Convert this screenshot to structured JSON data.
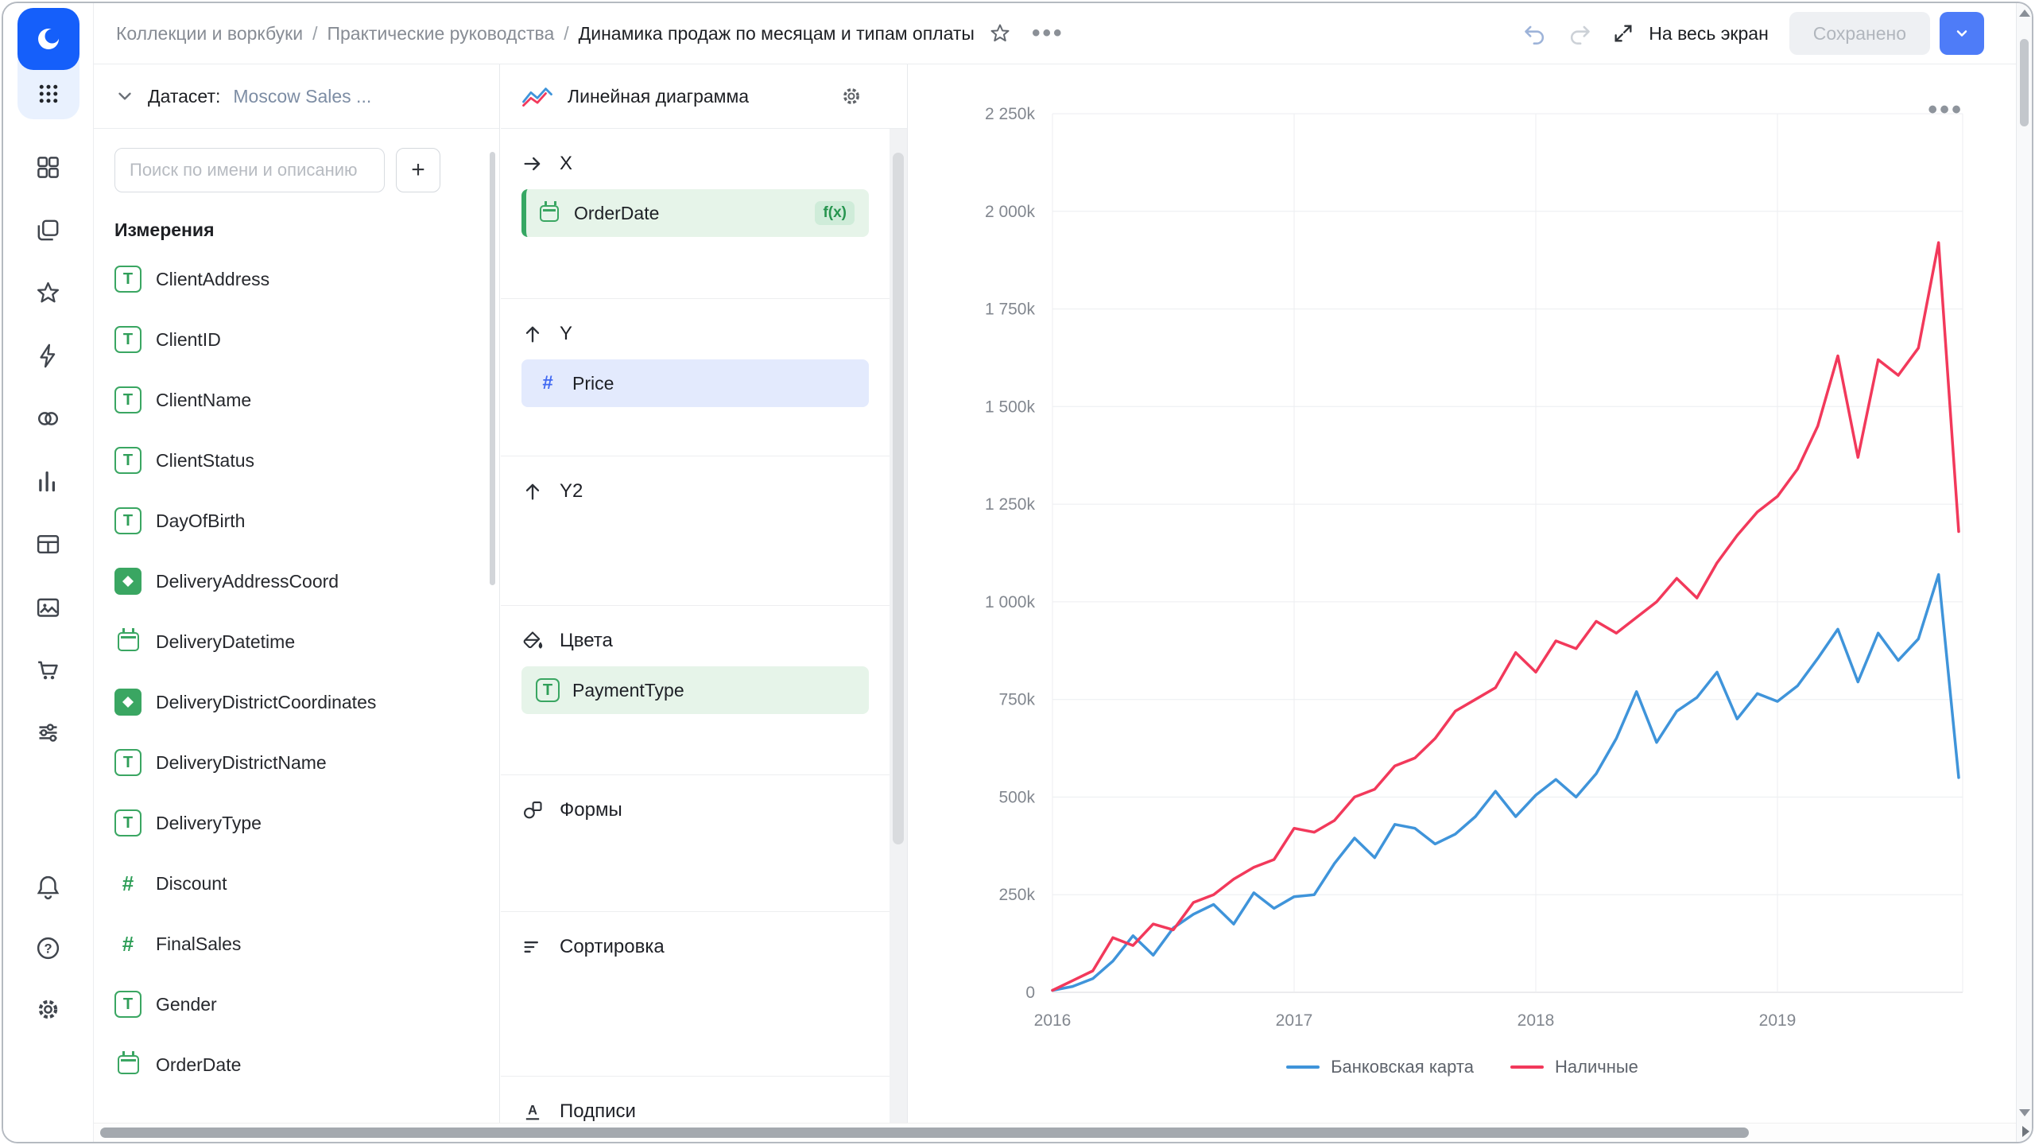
{
  "icons": {
    "more_dots": "•••",
    "plus": "+"
  },
  "rail": {
    "icons": [
      "datalens-logo",
      "apps-grid",
      "widgets",
      "collections",
      "favorites",
      "quick-actions",
      "datasets",
      "charts",
      "tables",
      "files",
      "marketplace",
      "service-settings",
      "notifications-bell",
      "help",
      "settings-gear"
    ]
  },
  "topbar": {
    "breadcrumb": [
      "Коллекции и воркбуки",
      "Практические руководства",
      "Динамика продаж по месяцам и типам оплаты"
    ],
    "fullscreen_label": "На весь экран",
    "saved_label": "Сохранено"
  },
  "dataset_panel": {
    "label": "Датасет:",
    "name": "Moscow Sales ...",
    "search_placeholder": "Поиск по имени и описанию",
    "dimensions_title": "Измерения",
    "fields": [
      {
        "name": "ClientAddress",
        "type": "text"
      },
      {
        "name": "ClientID",
        "type": "text"
      },
      {
        "name": "ClientName",
        "type": "text"
      },
      {
        "name": "ClientStatus",
        "type": "text"
      },
      {
        "name": "DayOfBirth",
        "type": "text"
      },
      {
        "name": "DeliveryAddressCoord",
        "type": "geo"
      },
      {
        "name": "DeliveryDatetime",
        "type": "date"
      },
      {
        "name": "DeliveryDistrictCoordinates",
        "type": "geo"
      },
      {
        "name": "DeliveryDistrictName",
        "type": "text"
      },
      {
        "name": "DeliveryType",
        "type": "text"
      },
      {
        "name": "Discount",
        "type": "number"
      },
      {
        "name": "FinalSales",
        "type": "number"
      },
      {
        "name": "Gender",
        "type": "text"
      },
      {
        "name": "OrderDate",
        "type": "date"
      }
    ]
  },
  "config_panel": {
    "title": "Линейная диаграмма",
    "sections": [
      {
        "id": "x",
        "label": "X",
        "icon": "arrow-right",
        "fields": [
          {
            "name": "OrderDate",
            "type": "date",
            "tone": "green",
            "accent": true,
            "badge": "f(x)"
          }
        ]
      },
      {
        "id": "y",
        "label": "Y",
        "icon": "arrow-up",
        "fields": [
          {
            "name": "Price",
            "type": "number",
            "tone": "blue"
          }
        ]
      },
      {
        "id": "y2",
        "label": "Y2",
        "icon": "arrow-up",
        "fields": []
      },
      {
        "id": "colors",
        "label": "Цвета",
        "icon": "paint",
        "fields": [
          {
            "name": "PaymentType",
            "type": "text",
            "tone": "green"
          }
        ]
      },
      {
        "id": "shapes",
        "label": "Формы",
        "icon": "shapes",
        "fields": []
      },
      {
        "id": "sort",
        "label": "Сортировка",
        "icon": "sort",
        "fields": []
      },
      {
        "id": "labels",
        "label": "Подписи",
        "icon": "labels",
        "fields": []
      }
    ]
  },
  "chart_data": {
    "type": "line",
    "title": "",
    "x_unit": "month",
    "x_start": "2016-01",
    "x_months": 46,
    "year_labels": [
      "2016",
      "2017",
      "2018",
      "2019"
    ],
    "values_unit": "thousands",
    "y_max": 2250,
    "y_ticks": [
      {
        "label": "2 250k",
        "value": 2250
      },
      {
        "label": "2 000k",
        "value": 2000
      },
      {
        "label": "1 750k",
        "value": 1750
      },
      {
        "label": "1 500k",
        "value": 1500
      },
      {
        "label": "1 250k",
        "value": 1250
      },
      {
        "label": "1 000k",
        "value": 1000
      },
      {
        "label": "750k",
        "value": 750
      },
      {
        "label": "500k",
        "value": 500
      },
      {
        "label": "250k",
        "value": 250
      },
      {
        "label": "0",
        "value": 0
      }
    ],
    "grid": true,
    "legend_position": "bottom",
    "series": [
      {
        "name": "Банковская карта",
        "color": "#3f94da",
        "values": [
          5,
          15,
          35,
          80,
          145,
          95,
          165,
          200,
          225,
          175,
          255,
          215,
          245,
          250,
          330,
          395,
          345,
          430,
          420,
          380,
          405,
          450,
          515,
          450,
          505,
          545,
          500,
          560,
          650,
          770,
          640,
          720,
          755,
          820,
          700,
          765,
          745,
          785,
          855,
          930,
          795,
          920,
          850,
          905,
          1070,
          550
        ]
      },
      {
        "name": "Наличные",
        "color": "#f2395b",
        "values": [
          5,
          30,
          55,
          140,
          120,
          175,
          160,
          230,
          250,
          290,
          320,
          340,
          420,
          410,
          440,
          500,
          520,
          580,
          600,
          650,
          720,
          750,
          780,
          870,
          820,
          900,
          880,
          950,
          920,
          960,
          1000,
          1060,
          1010,
          1100,
          1170,
          1230,
          1270,
          1340,
          1450,
          1630,
          1370,
          1620,
          1580,
          1650,
          1920,
          1180
        ]
      }
    ]
  }
}
